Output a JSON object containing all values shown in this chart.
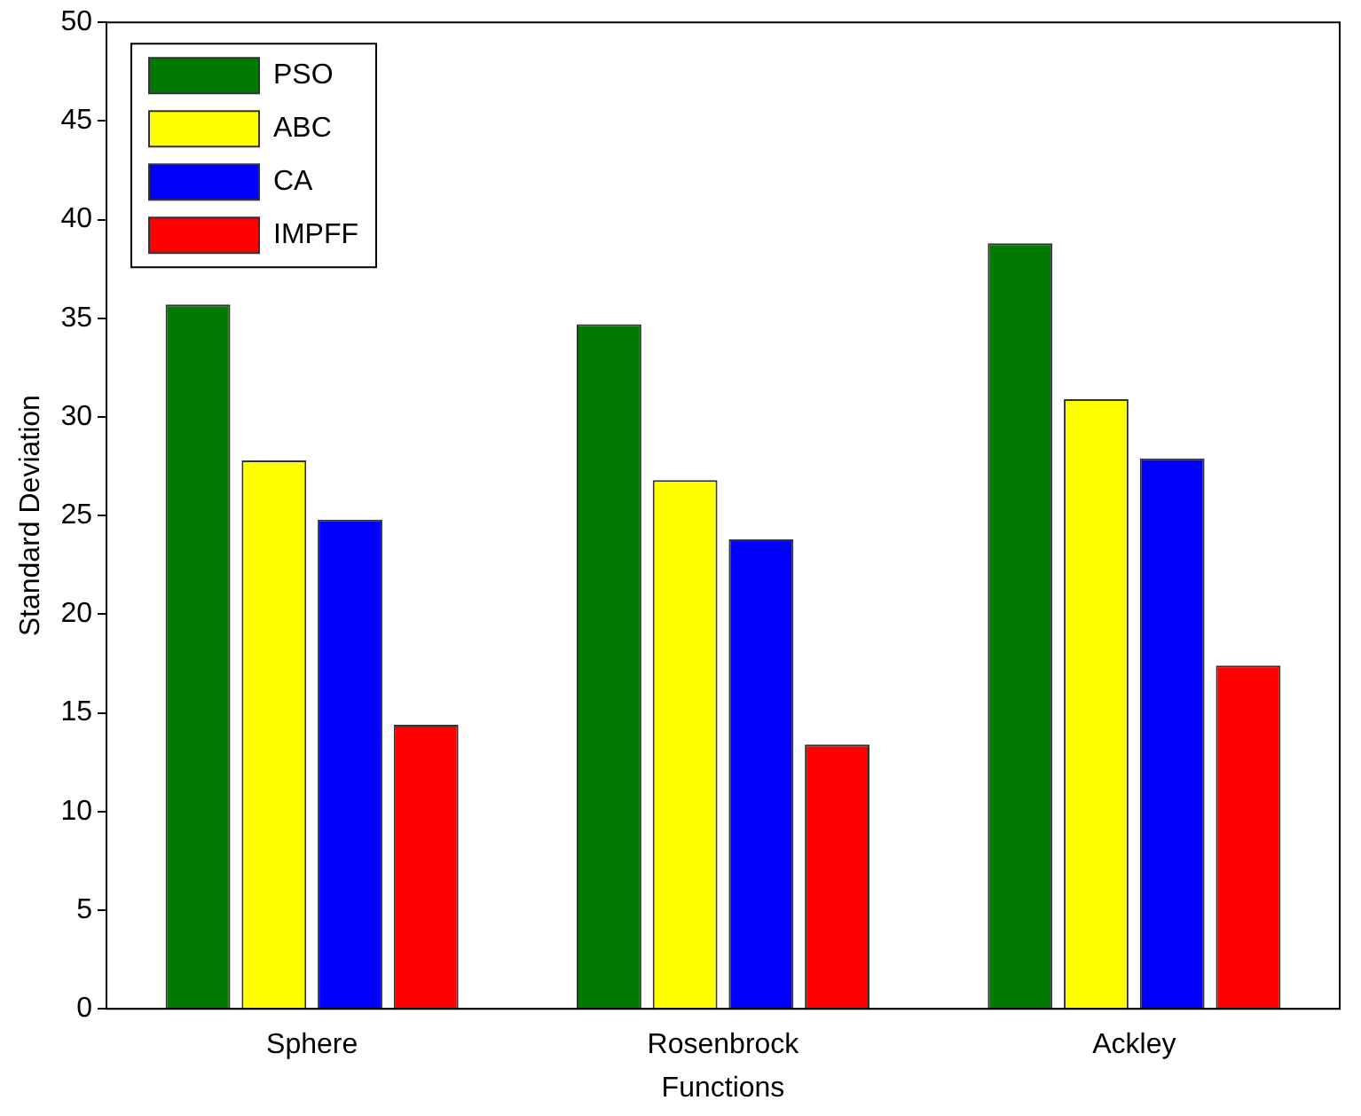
{
  "chart_data": {
    "type": "bar",
    "xlabel": "Functions",
    "ylabel": "Standard Deviation",
    "categories": [
      "Sphere",
      "Rosenbrock",
      "Ackley"
    ],
    "series": [
      {
        "name": "PSO",
        "color": "#007a00",
        "values": [
          35.7,
          34.7,
          38.8
        ]
      },
      {
        "name": "ABC",
        "color": "#ffff00",
        "values": [
          27.8,
          26.8,
          30.9
        ]
      },
      {
        "name": "CA",
        "color": "#0000ff",
        "values": [
          24.8,
          23.8,
          27.9
        ]
      },
      {
        "name": "IMPFF",
        "color": "#ff0000",
        "values": [
          14.4,
          13.4,
          17.4
        ]
      }
    ],
    "ylim": [
      0,
      50
    ],
    "yticks": [
      0,
      5,
      10,
      15,
      20,
      25,
      30,
      35,
      40,
      45,
      50
    ],
    "grid": false,
    "legend": "top left"
  }
}
